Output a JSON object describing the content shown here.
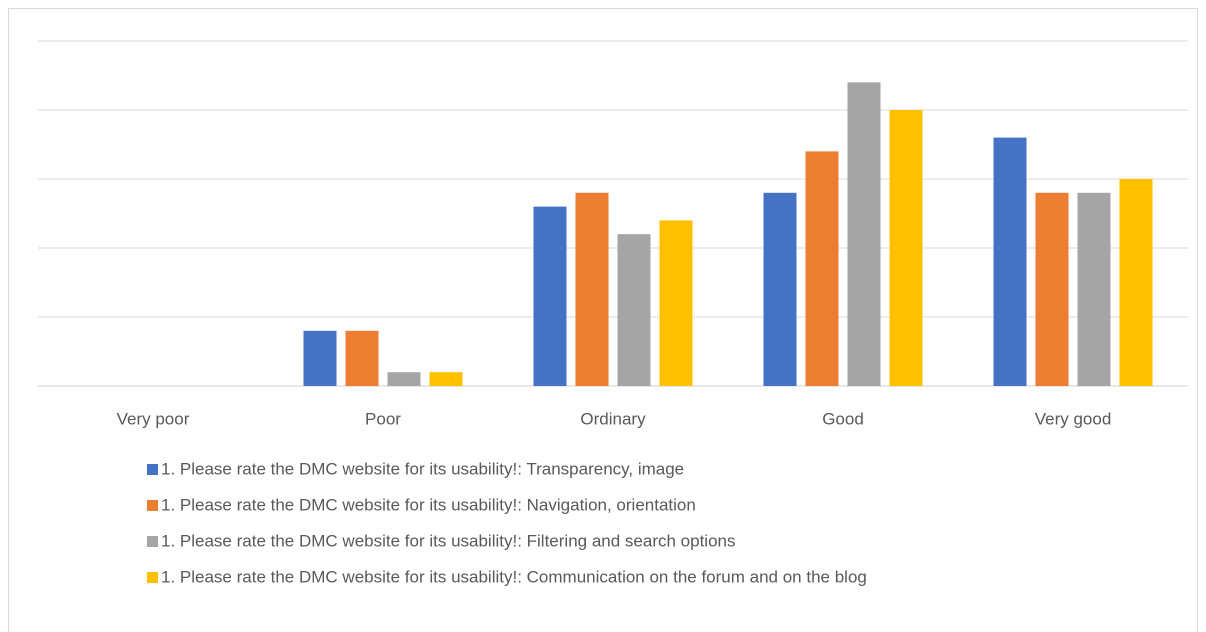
{
  "chart_data": {
    "type": "bar",
    "categories": [
      "Very poor",
      "Poor",
      "Ordinary",
      "Good",
      "Very good"
    ],
    "series": [
      {
        "name": "1. Please rate the DMC website for its usability!: Transparency, image",
        "color": "#4472c4",
        "values": [
          0,
          4,
          13,
          14,
          18
        ]
      },
      {
        "name": "1. Please rate the DMC website for its usability!: Navigation, orientation",
        "color": "#ed7d31",
        "values": [
          0,
          4,
          14,
          17,
          14
        ]
      },
      {
        "name": "1. Please rate the DMC website for its usability!: Filtering and search options",
        "color": "#a5a5a5",
        "values": [
          0,
          1,
          11,
          22,
          14
        ]
      },
      {
        "name": "1. Please rate the DMC website for its usability!: Communication on the forum and on the blog",
        "color": "#ffc000",
        "values": [
          0,
          1,
          12,
          20,
          15
        ]
      }
    ],
    "ylim": [
      0,
      25
    ],
    "yticks": [
      0,
      5,
      10,
      15,
      20,
      25
    ],
    "grid": true,
    "legend": "bottom"
  }
}
